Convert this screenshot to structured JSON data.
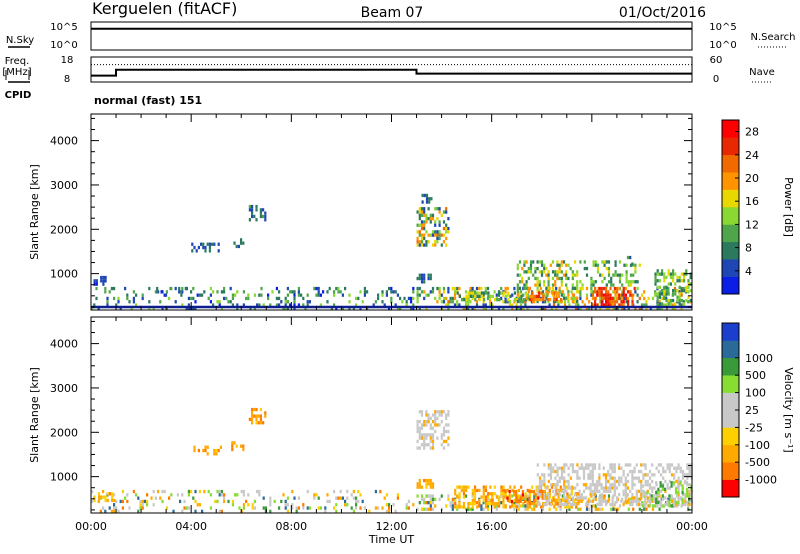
{
  "header": {
    "station": "Kerguelen (fitACF)",
    "beam": "Beam 07",
    "date": "01/Oct/2016"
  },
  "summary": {
    "nsky_label": "N.Sky",
    "nsearch_label": "N.Search",
    "freq_label_1": "Freq.",
    "freq_label_2": "[MHz]",
    "nave_label": "Nave",
    "cpid_label": "CPID",
    "cpid_value": "normal (fast) 151",
    "noise_ticks": [
      "10^5",
      "10^0"
    ],
    "freq_ticks": [
      "18",
      "8"
    ],
    "nave_ticks": [
      "60",
      "0"
    ]
  },
  "colors": {
    "power": [
      "#0a1ee6",
      "#1e46b4",
      "#2b7a5e",
      "#4fa64a",
      "#8ad832",
      "#e8d800",
      "#ff9400",
      "#f06a00",
      "#e82800",
      "#ff0000"
    ],
    "velocity": [
      "#ff0000",
      "#ff7a00",
      "#ffaa00",
      "#ffd000",
      "#c8c8c8",
      "#c8c8c8",
      "#88dd33",
      "#3a9a3a",
      "#2a6a99",
      "#1a3fcc"
    ],
    "ground_scatter": "#c8c8c8",
    "baseline": "#0f1e8c"
  },
  "chart_data": [
    {
      "type": "line",
      "panel": "noise",
      "series": [
        {
          "name": "N.Sky",
          "style": "solid",
          "x": [
            0,
            24
          ],
          "y": [
            4.0,
            4.0
          ]
        },
        {
          "name": "N.Search",
          "style": "dotted",
          "x": [
            0,
            24
          ],
          "y": [
            4.0,
            4.0
          ]
        }
      ],
      "ylim": [
        0,
        5
      ],
      "ytick_labels": [
        "10^0",
        "10^5"
      ]
    },
    {
      "type": "line",
      "panel": "frequency",
      "series": [
        {
          "name": "Freq.",
          "style": "solid",
          "x": [
            0,
            1,
            1,
            13,
            13,
            24
          ],
          "y": [
            10,
            10,
            12.7,
            12.7,
            10.9,
            10.9
          ]
        },
        {
          "name": "Nave",
          "style": "dotted",
          "x": [
            0,
            24
          ],
          "y": [
            42,
            42
          ]
        }
      ],
      "ylim": [
        8,
        18
      ],
      "y2lim": [
        0,
        60
      ]
    },
    {
      "type": "heatmap",
      "panel": "power",
      "xlabel": "",
      "ylabel": "Slant Range [km]",
      "xlim": [
        0,
        24
      ],
      "ylim": [
        180,
        4600
      ],
      "yticks": [
        1000,
        2000,
        3000,
        4000
      ],
      "colorbar": {
        "label": "Power [dB]",
        "ticks": [
          "4",
          "8",
          "12",
          "16",
          "20",
          "24",
          "28"
        ],
        "range": [
          0,
          30
        ]
      },
      "regions": [
        {
          "t0": 0.0,
          "t1": 12.9,
          "r0": 200,
          "r1": 700,
          "vmin": 2,
          "vmax": 14,
          "density": 0.22
        },
        {
          "t0": 0.1,
          "t1": 0.6,
          "r0": 750,
          "r1": 950,
          "vmin": 2,
          "vmax": 8,
          "density": 0.55
        },
        {
          "t0": 2.6,
          "t1": 3.8,
          "r0": 500,
          "r1": 700,
          "vmin": 2,
          "vmax": 10,
          "density": 0.2
        },
        {
          "t0": 4.0,
          "t1": 5.2,
          "r0": 1500,
          "r1": 1700,
          "vmin": 4,
          "vmax": 8,
          "density": 0.4
        },
        {
          "t0": 5.6,
          "t1": 6.1,
          "r0": 1600,
          "r1": 1800,
          "vmin": 4,
          "vmax": 8,
          "density": 0.45
        },
        {
          "t0": 6.3,
          "t1": 7.0,
          "r0": 2200,
          "r1": 2550,
          "vmin": 4,
          "vmax": 10,
          "density": 0.5
        },
        {
          "t0": 13.0,
          "t1": 14.3,
          "r0": 1600,
          "r1": 2500,
          "vmin": 4,
          "vmax": 22,
          "density": 0.45
        },
        {
          "t0": 13.2,
          "t1": 13.6,
          "r0": 2600,
          "r1": 2800,
          "vmin": 4,
          "vmax": 8,
          "density": 0.5
        },
        {
          "t0": 13.0,
          "t1": 24.0,
          "r0": 200,
          "r1": 700,
          "vmin": 3,
          "vmax": 22,
          "density": 0.4
        },
        {
          "t0": 13.0,
          "t1": 13.6,
          "r0": 800,
          "r1": 1000,
          "vmin": 4,
          "vmax": 10,
          "density": 0.6
        },
        {
          "t0": 14.6,
          "t1": 17.5,
          "r0": 350,
          "r1": 600,
          "vmin": 6,
          "vmax": 18,
          "density": 0.5
        },
        {
          "t0": 17.0,
          "t1": 19.5,
          "r0": 300,
          "r1": 1300,
          "vmin": 6,
          "vmax": 20,
          "density": 0.45
        },
        {
          "t0": 17.5,
          "t1": 18.8,
          "r0": 350,
          "r1": 600,
          "vmin": 18,
          "vmax": 26,
          "density": 0.6
        },
        {
          "t0": 20.0,
          "t1": 21.8,
          "r0": 250,
          "r1": 700,
          "vmin": 20,
          "vmax": 30,
          "density": 0.65
        },
        {
          "t0": 19.5,
          "t1": 22.0,
          "r0": 700,
          "r1": 1300,
          "vmin": 6,
          "vmax": 16,
          "density": 0.3
        },
        {
          "t0": 22.5,
          "t1": 24.0,
          "r0": 300,
          "r1": 1100,
          "vmin": 6,
          "vmax": 18,
          "density": 0.45
        },
        {
          "t0": 21.4,
          "t1": 21.7,
          "r0": 1200,
          "r1": 1400,
          "vmin": 4,
          "vmax": 10,
          "density": 0.5
        }
      ]
    },
    {
      "type": "heatmap",
      "panel": "velocity",
      "xlabel": "Time UT",
      "ylabel": "Slant Range [km]",
      "xlim": [
        0,
        24
      ],
      "ylim": [
        180,
        4600
      ],
      "yticks": [
        1000,
        2000,
        3000,
        4000
      ],
      "xtick_labels": [
        "00:00",
        "04:00",
        "08:00",
        "12:00",
        "16:00",
        "20:00",
        "00:00"
      ],
      "colorbar": {
        "label": "Velocity [m s⁻¹]",
        "ticks": [
          "-1000",
          "-500",
          "-100",
          "-25",
          "25",
          "100",
          "500",
          "1000"
        ]
      },
      "regions": [
        {
          "t0": 0.0,
          "t1": 12.9,
          "r0": 200,
          "r1": 700,
          "class": "mixed",
          "density": 0.18
        },
        {
          "t0": 0.1,
          "t1": 1.0,
          "r0": 400,
          "r1": 650,
          "class": "neg",
          "density": 0.55
        },
        {
          "t0": 4.0,
          "t1": 5.2,
          "r0": 1500,
          "r1": 1700,
          "class": "neg",
          "density": 0.4
        },
        {
          "t0": 5.6,
          "t1": 6.1,
          "r0": 1600,
          "r1": 1800,
          "class": "neg",
          "density": 0.45
        },
        {
          "t0": 6.3,
          "t1": 7.0,
          "r0": 2200,
          "r1": 2550,
          "class": "neg",
          "density": 0.5
        },
        {
          "t0": 13.0,
          "t1": 14.3,
          "r0": 1600,
          "r1": 2500,
          "class": "gs",
          "density": 0.5
        },
        {
          "t0": 13.0,
          "t1": 24.0,
          "r0": 200,
          "r1": 600,
          "class": "mixed",
          "density": 0.35
        },
        {
          "t0": 13.0,
          "t1": 13.7,
          "r0": 750,
          "r1": 950,
          "class": "neg",
          "density": 0.6
        },
        {
          "t0": 14.5,
          "t1": 19.5,
          "r0": 300,
          "r1": 800,
          "class": "neg",
          "density": 0.5
        },
        {
          "t0": 16.5,
          "t1": 18.2,
          "r0": 400,
          "r1": 700,
          "class": "negstrong",
          "density": 0.55
        },
        {
          "t0": 17.8,
          "t1": 24.0,
          "r0": 300,
          "r1": 1300,
          "class": "gs",
          "density": 0.5
        },
        {
          "t0": 22.0,
          "t1": 24.0,
          "r0": 300,
          "r1": 900,
          "class": "pos",
          "density": 0.35
        }
      ]
    }
  ]
}
